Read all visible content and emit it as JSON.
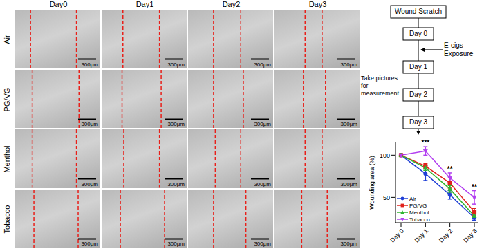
{
  "panels": {
    "columns": [
      "Day0",
      "Day1",
      "Day2",
      "Day3"
    ],
    "rows": [
      "Air",
      "PG/VG",
      "Menthol",
      "Tobacco"
    ],
    "scale_bar": "300μm"
  },
  "diagram": {
    "start_label": "Wound Scratch",
    "steps": [
      "Day 0",
      "Day 1",
      "Day 2",
      "Day 3"
    ],
    "exposure_label": "E-cigs Exposure",
    "measure_label": "Take pictures for measurement"
  },
  "chart_data": {
    "type": "line",
    "y_label": "Wounding area (%)",
    "categories": [
      "Day 0",
      "Day 1",
      "Day 2",
      "Day 3"
    ],
    "ylim": [
      20,
      115
    ],
    "yticks": [
      50,
      100
    ],
    "legend": "lower left",
    "series": [
      {
        "name": "Air",
        "color": "#1f3fd6",
        "marker": "circle",
        "values": [
          100,
          78,
          53,
          26
        ],
        "errors": [
          0,
          8,
          5,
          3
        ]
      },
      {
        "name": "PG/VG",
        "color": "#e0201b",
        "marker": "square",
        "values": [
          100,
          87,
          67,
          33
        ],
        "errors": [
          0,
          3,
          6,
          4
        ]
      },
      {
        "name": "Menthol",
        "color": "#2fb52f",
        "marker": "triangle",
        "values": [
          100,
          85,
          60,
          28
        ],
        "errors": [
          0,
          3,
          4,
          3
        ]
      },
      {
        "name": "Tobacco",
        "color": "#b23ff0",
        "marker": "triangle-down",
        "values": [
          100,
          105,
          73,
          50
        ],
        "errors": [
          0,
          5,
          6,
          8
        ]
      }
    ],
    "annotations": [
      {
        "category": "Day 1",
        "text": "***"
      },
      {
        "category": "Day 2",
        "text": "**"
      },
      {
        "category": "Day 3",
        "text": "**"
      }
    ]
  }
}
